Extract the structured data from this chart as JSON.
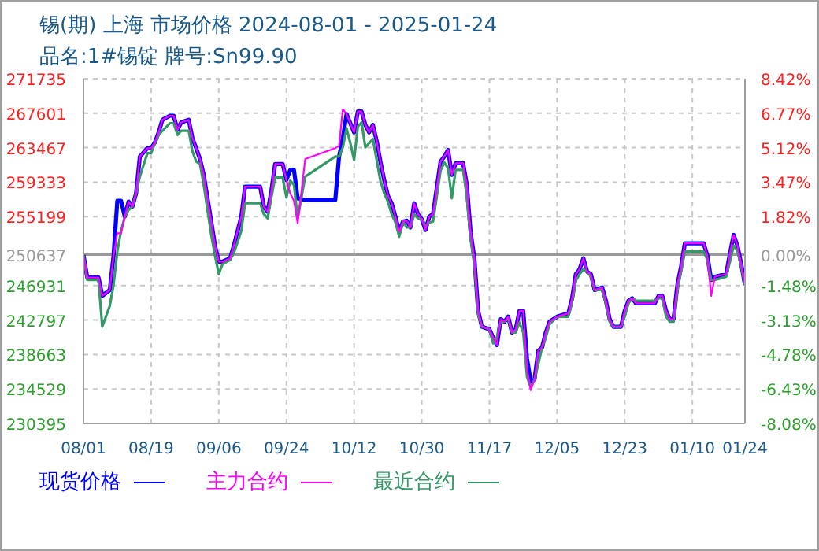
{
  "chart_data": {
    "type": "line",
    "title": "锡(期) 上海 市场价格 2024-08-01 - 2025-01-24",
    "subtitle": "品名:1#锡锭 牌号:Sn99.90",
    "x": [
      "2024-08-01",
      "2024-08-02",
      "2024-08-05",
      "2024-08-06",
      "2024-08-08",
      "2024-08-09",
      "2024-08-10",
      "2024-08-11",
      "2024-08-12",
      "2024-08-13",
      "2024-08-14",
      "2024-08-15",
      "2024-08-16",
      "2024-08-18",
      "2024-08-19",
      "2024-08-20",
      "2024-08-21",
      "2024-08-22",
      "2024-08-24",
      "2024-08-25",
      "2024-08-26",
      "2024-08-27",
      "2024-08-29",
      "2024-08-30",
      "2024-08-31",
      "2024-09-01",
      "2024-09-02",
      "2024-09-03",
      "2024-09-04",
      "2024-09-05",
      "2024-09-06",
      "2024-09-07",
      "2024-09-09",
      "2024-09-10",
      "2024-09-12",
      "2024-09-13",
      "2024-09-17",
      "2024-09-18",
      "2024-09-19",
      "2024-09-20",
      "2024-09-21",
      "2024-09-23",
      "2024-09-24",
      "2024-09-25",
      "2024-09-26",
      "2024-09-27",
      "2024-09-29",
      "2024-10-07",
      "2024-10-08",
      "2024-10-09",
      "2024-10-10",
      "2024-10-11",
      "2024-10-12",
      "2024-10-13",
      "2024-10-14",
      "2024-10-15",
      "2024-10-16",
      "2024-10-17",
      "2024-10-18",
      "2024-10-19",
      "2024-10-20",
      "2024-10-21",
      "2024-10-22",
      "2024-10-23",
      "2024-10-24",
      "2024-10-25",
      "2024-10-26",
      "2024-10-27",
      "2024-10-28",
      "2024-10-29",
      "2024-10-30",
      "2024-10-31",
      "2024-11-01",
      "2024-11-02",
      "2024-11-04",
      "2024-11-05",
      "2024-11-06",
      "2024-11-07",
      "2024-11-08",
      "2024-11-10",
      "2024-11-11",
      "2024-11-12",
      "2024-11-13",
      "2024-11-14",
      "2024-11-15",
      "2024-11-17",
      "2024-11-18",
      "2024-11-19",
      "2024-11-20",
      "2024-11-21",
      "2024-11-22",
      "2024-11-23",
      "2024-11-24",
      "2024-11-25",
      "2024-11-26",
      "2024-11-27",
      "2024-11-28",
      "2024-11-29",
      "2024-11-30",
      "2024-12-01",
      "2024-12-02",
      "2024-12-03",
      "2024-12-05",
      "2024-12-08",
      "2024-12-09",
      "2024-12-10",
      "2024-12-11",
      "2024-12-12",
      "2024-12-13",
      "2024-12-14",
      "2024-12-15",
      "2024-12-17",
      "2024-12-18",
      "2024-12-19",
      "2024-12-20",
      "2024-12-22",
      "2024-12-23",
      "2024-12-24",
      "2024-12-25",
      "2024-12-26",
      "2024-12-31",
      "2025-01-01",
      "2025-01-02",
      "2025-01-03",
      "2025-01-04",
      "2025-01-05",
      "2025-01-06",
      "2025-01-07",
      "2025-01-08",
      "2025-01-13",
      "2025-01-14",
      "2025-01-15",
      "2025-01-16",
      "2025-01-19",
      "2025-01-20",
      "2025-01-21",
      "2025-01-22",
      "2025-01-23",
      "2025-01-24"
    ],
    "series": [
      {
        "name": "现货价格",
        "color": "#0000ff",
        "values": [
          250600,
          247900,
          247900,
          245700,
          246400,
          250500,
          257100,
          257100,
          255200,
          257000,
          256400,
          258000,
          262400,
          263400,
          263400,
          264100,
          265300,
          266800,
          267300,
          267300,
          265600,
          266500,
          266800,
          264600,
          263400,
          262100,
          260200,
          257400,
          254600,
          251700,
          249800,
          249800,
          250200,
          251700,
          255200,
          258800,
          258800,
          256400,
          255800,
          258300,
          261500,
          261500,
          259600,
          260800,
          260800,
          257400,
          257200,
          257200,
          262400,
          264600,
          267500,
          266400,
          265300,
          267800,
          267800,
          266200,
          265300,
          266200,
          264300,
          261800,
          259600,
          257700,
          256800,
          255200,
          253400,
          254600,
          254700,
          253900,
          256800,
          255500,
          254900,
          253600,
          255200,
          255500,
          261800,
          262400,
          263200,
          260200,
          261600,
          261600,
          259000,
          253300,
          250200,
          243900,
          242000,
          241700,
          240700,
          239800,
          242900,
          242600,
          243200,
          241300,
          241700,
          243900,
          243900,
          238200,
          235400,
          235700,
          239100,
          239500,
          241300,
          242600,
          243200,
          243600,
          245400,
          248300,
          248900,
          250200,
          248600,
          248300,
          246400,
          246700,
          245100,
          242900,
          242000,
          242000,
          243900,
          245100,
          245400,
          244800,
          244800,
          245700,
          245700,
          243900,
          242900,
          242900,
          247000,
          249200,
          252000,
          252000,
          250500,
          247600,
          248000,
          248300,
          250800,
          253000,
          251700,
          249500,
          247000
        ]
      },
      {
        "name": "主力合约",
        "color": "#ff00ff",
        "values": [
          250600,
          247900,
          247900,
          245700,
          246400,
          250500,
          253200,
          253200,
          255200,
          257000,
          256400,
          258000,
          262400,
          263400,
          263400,
          264100,
          265300,
          266800,
          267300,
          267300,
          265600,
          266500,
          266800,
          264600,
          263400,
          262100,
          260200,
          257400,
          254600,
          251700,
          249800,
          249800,
          250200,
          251700,
          255200,
          258800,
          258800,
          256400,
          255800,
          258300,
          261500,
          261500,
          259600,
          258000,
          257100,
          254400,
          262100,
          263400,
          263700,
          268100,
          267500,
          266400,
          265300,
          267800,
          267800,
          266200,
          265300,
          266200,
          264300,
          261800,
          259600,
          257700,
          256800,
          255200,
          253400,
          254600,
          254700,
          253900,
          256800,
          255500,
          254900,
          253600,
          255200,
          255500,
          261800,
          262400,
          263200,
          260200,
          261600,
          261600,
          259000,
          253300,
          250200,
          243900,
          242000,
          241700,
          240700,
          239800,
          242900,
          242600,
          243200,
          241300,
          241700,
          243900,
          243900,
          237000,
          234400,
          235700,
          239100,
          239500,
          241300,
          242600,
          243200,
          243600,
          245400,
          248300,
          248900,
          250200,
          248600,
          248300,
          246400,
          246700,
          245100,
          242900,
          242000,
          242000,
          243900,
          245100,
          245400,
          244800,
          244800,
          245700,
          245700,
          243900,
          242900,
          242900,
          247000,
          249200,
          252000,
          252000,
          250500,
          245700,
          248000,
          248300,
          250800,
          253000,
          251700,
          249500,
          247000
        ]
      },
      {
        "name": "最近合约",
        "color": "#339966",
        "values": [
          250600,
          247600,
          247600,
          242000,
          244500,
          247000,
          251000,
          253500,
          255200,
          256000,
          256400,
          258000,
          260000,
          262800,
          262800,
          264000,
          265000,
          265500,
          266400,
          266400,
          265000,
          265500,
          265500,
          263000,
          261800,
          261500,
          259000,
          256000,
          253000,
          250500,
          248300,
          249500,
          250000,
          250800,
          253500,
          256800,
          256800,
          255500,
          255000,
          257500,
          259900,
          259900,
          257500,
          259500,
          259000,
          255000,
          260000,
          262400,
          262400,
          263500,
          265800,
          264000,
          262000,
          266000,
          266500,
          263500,
          264000,
          264500,
          262000,
          259500,
          258000,
          257000,
          255500,
          254500,
          252800,
          254600,
          253900,
          253900,
          255500,
          255000,
          254900,
          254000,
          254500,
          254600,
          260700,
          261700,
          261000,
          257400,
          260800,
          260800,
          257500,
          252500,
          249500,
          243500,
          242000,
          241700,
          240000,
          240700,
          242600,
          242600,
          243000,
          241300,
          241300,
          242500,
          241300,
          236000,
          234700,
          235700,
          237500,
          239500,
          240700,
          242300,
          243200,
          243200,
          245000,
          247500,
          248300,
          248900,
          248600,
          248000,
          246400,
          246400,
          244800,
          242600,
          242000,
          242000,
          243200,
          244800,
          245400,
          245100,
          245100,
          245400,
          245400,
          243200,
          242600,
          242600,
          246400,
          248600,
          251000,
          251000,
          250000,
          247600,
          247600,
          248000,
          249800,
          251700,
          251100,
          249200,
          247000
        ]
      }
    ],
    "xlim": [
      "2024-08-01",
      "2025-01-24"
    ],
    "xticks": [
      {
        "value": "2024-08-01",
        "label": "08/01"
      },
      {
        "value": "2024-08-19",
        "label": "08/19"
      },
      {
        "value": "2024-09-06",
        "label": "09/06"
      },
      {
        "value": "2024-09-24",
        "label": "09/24"
      },
      {
        "value": "2024-10-12",
        "label": "10/12"
      },
      {
        "value": "2024-10-30",
        "label": "10/30"
      },
      {
        "value": "2024-11-17",
        "label": "11/17"
      },
      {
        "value": "2024-12-05",
        "label": "12/05"
      },
      {
        "value": "2024-12-23",
        "label": "12/23"
      },
      {
        "value": "2025-01-10",
        "label": "01/10"
      },
      {
        "value": "2025-01-24",
        "label": "01/24"
      }
    ],
    "ylim": [
      230395,
      271735
    ],
    "yticks": [
      271735,
      267601,
      263467,
      259333,
      255199,
      250637,
      246931,
      242797,
      238663,
      234529,
      230395
    ],
    "y2lim": [
      -8.08,
      8.42
    ],
    "y2ticks": [
      {
        "value": 8.42,
        "label": "8.42%"
      },
      {
        "value": 6.77,
        "label": "6.77%"
      },
      {
        "value": 5.12,
        "label": "5.12%"
      },
      {
        "value": 3.47,
        "label": "3.47%"
      },
      {
        "value": 1.82,
        "label": "1.82%"
      },
      {
        "value": 0,
        "label": "0.00%"
      },
      {
        "value": -1.48,
        "label": "-1.48%"
      },
      {
        "value": -3.13,
        "label": "-3.13%"
      },
      {
        "value": -4.78,
        "label": "-4.78%"
      },
      {
        "value": -6.43,
        "label": "-6.43%"
      },
      {
        "value": -8.08,
        "label": "-8.08%"
      }
    ],
    "ref_lines": [
      {
        "axis": "y2",
        "value": 0,
        "color": "#999999"
      }
    ],
    "grid": true,
    "legend": "bottom",
    "marker": "none",
    "line_style": "solid"
  }
}
